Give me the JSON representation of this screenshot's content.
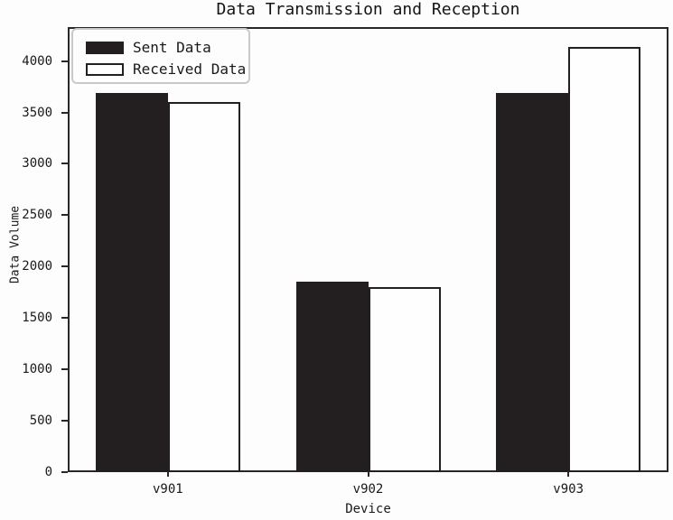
{
  "chart_data": {
    "type": "bar",
    "title": "Data Transmission and Reception",
    "xlabel": "Device",
    "ylabel": "Data Volume",
    "categories": [
      "v901",
      "v902",
      "v903"
    ],
    "series": [
      {
        "name": "Sent Data",
        "values": [
          3690,
          1850,
          3690
        ],
        "fill": "#231f20"
      },
      {
        "name": "Received Data",
        "values": [
          3600,
          1800,
          4140
        ],
        "fill": "#fefefe"
      }
    ],
    "yticks": [
      0,
      500,
      1000,
      1500,
      2000,
      2500,
      3000,
      3500,
      4000
    ],
    "ylim": [
      0,
      4330
    ],
    "grid": false,
    "legend_position": "upper left",
    "colors": {
      "bar_edge": "#231f20",
      "sent_fill": "#231f20",
      "received_fill": "#fefefe",
      "frame": "#2b2728",
      "text": "#1c1819",
      "legend_border": "#c9c9c9",
      "background": "#fdfdfd"
    }
  }
}
